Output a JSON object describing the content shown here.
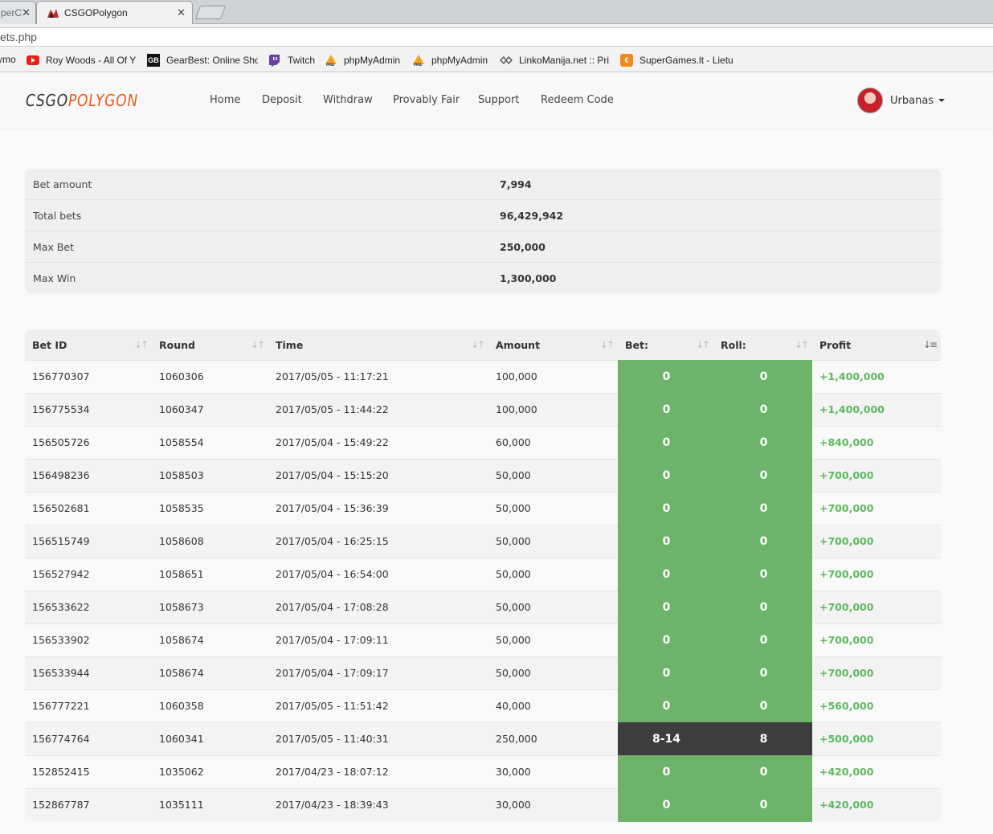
{
  "browser": {
    "tabs": [
      {
        "title": "perC",
        "active": false
      },
      {
        "title": "CSGOPolygon",
        "active": true
      }
    ],
    "url": "ets.php",
    "bookmarks": [
      {
        "label": "ymo",
        "icon": "generic-icon"
      },
      {
        "label": "Roy Woods - All Of Y",
        "icon": "youtube-icon"
      },
      {
        "label": "GearBest: Online Sho",
        "icon": "gearbest-icon"
      },
      {
        "label": "Twitch",
        "icon": "twitch-icon"
      },
      {
        "label": "phpMyAdmin",
        "icon": "phpmyadmin-icon"
      },
      {
        "label": "phpMyAdmin",
        "icon": "phpmyadmin-icon"
      },
      {
        "label": "LinkoManija.net :: Pri",
        "icon": "linkomanija-icon"
      },
      {
        "label": "SuperGames.lt - Lietu",
        "icon": "supergames-icon"
      }
    ]
  },
  "site": {
    "logo_part1": "CSGO",
    "logo_part2": "POLYGON",
    "nav": [
      "Home",
      "Deposit",
      "Withdraw",
      "Provably Fair",
      "Support",
      "Redeem Code"
    ],
    "username": "Urbanas"
  },
  "stats": [
    {
      "label": "Bet amount",
      "value": "7,994"
    },
    {
      "label": "Total bets",
      "value": "96,429,942"
    },
    {
      "label": "Max Bet",
      "value": "250,000"
    },
    {
      "label": "Max Win",
      "value": "1,300,000"
    }
  ],
  "table": {
    "headers": [
      "Bet ID",
      "Round",
      "Time",
      "Amount",
      "Bet:",
      "Roll:",
      "Profit"
    ],
    "rows": [
      {
        "id": "156770307",
        "round": "1060306",
        "time": "2017/05/05 - 11:17:21",
        "amount": "100,000",
        "bet": "0",
        "roll": "0",
        "profit": "+1,400,000",
        "color": "green"
      },
      {
        "id": "156775534",
        "round": "1060347",
        "time": "2017/05/05 - 11:44:22",
        "amount": "100,000",
        "bet": "0",
        "roll": "0",
        "profit": "+1,400,000",
        "color": "green"
      },
      {
        "id": "156505726",
        "round": "1058554",
        "time": "2017/05/04 - 15:49:22",
        "amount": "60,000",
        "bet": "0",
        "roll": "0",
        "profit": "+840,000",
        "color": "green"
      },
      {
        "id": "156498236",
        "round": "1058503",
        "time": "2017/05/04 - 15:15:20",
        "amount": "50,000",
        "bet": "0",
        "roll": "0",
        "profit": "+700,000",
        "color": "green"
      },
      {
        "id": "156502681",
        "round": "1058535",
        "time": "2017/05/04 - 15:36:39",
        "amount": "50,000",
        "bet": "0",
        "roll": "0",
        "profit": "+700,000",
        "color": "green"
      },
      {
        "id": "156515749",
        "round": "1058608",
        "time": "2017/05/04 - 16:25:15",
        "amount": "50,000",
        "bet": "0",
        "roll": "0",
        "profit": "+700,000",
        "color": "green"
      },
      {
        "id": "156527942",
        "round": "1058651",
        "time": "2017/05/04 - 16:54:00",
        "amount": "50,000",
        "bet": "0",
        "roll": "0",
        "profit": "+700,000",
        "color": "green"
      },
      {
        "id": "156533622",
        "round": "1058673",
        "time": "2017/05/04 - 17:08:28",
        "amount": "50,000",
        "bet": "0",
        "roll": "0",
        "profit": "+700,000",
        "color": "green"
      },
      {
        "id": "156533902",
        "round": "1058674",
        "time": "2017/05/04 - 17:09:11",
        "amount": "50,000",
        "bet": "0",
        "roll": "0",
        "profit": "+700,000",
        "color": "green"
      },
      {
        "id": "156533944",
        "round": "1058674",
        "time": "2017/05/04 - 17:09:17",
        "amount": "50,000",
        "bet": "0",
        "roll": "0",
        "profit": "+700,000",
        "color": "green"
      },
      {
        "id": "156777221",
        "round": "1060358",
        "time": "2017/05/05 - 11:51:42",
        "amount": "40,000",
        "bet": "0",
        "roll": "0",
        "profit": "+560,000",
        "color": "green"
      },
      {
        "id": "156774764",
        "round": "1060341",
        "time": "2017/05/05 - 11:40:31",
        "amount": "250,000",
        "bet": "8-14",
        "roll": "8",
        "profit": "+500,000",
        "color": "dark"
      },
      {
        "id": "152852415",
        "round": "1035062",
        "time": "2017/04/23 - 18:07:12",
        "amount": "30,000",
        "bet": "0",
        "roll": "0",
        "profit": "+420,000",
        "color": "green"
      },
      {
        "id": "152867787",
        "round": "1035111",
        "time": "2017/04/23 - 18:39:43",
        "amount": "30,000",
        "bet": "0",
        "roll": "0",
        "profit": "+420,000",
        "color": "green"
      }
    ]
  }
}
